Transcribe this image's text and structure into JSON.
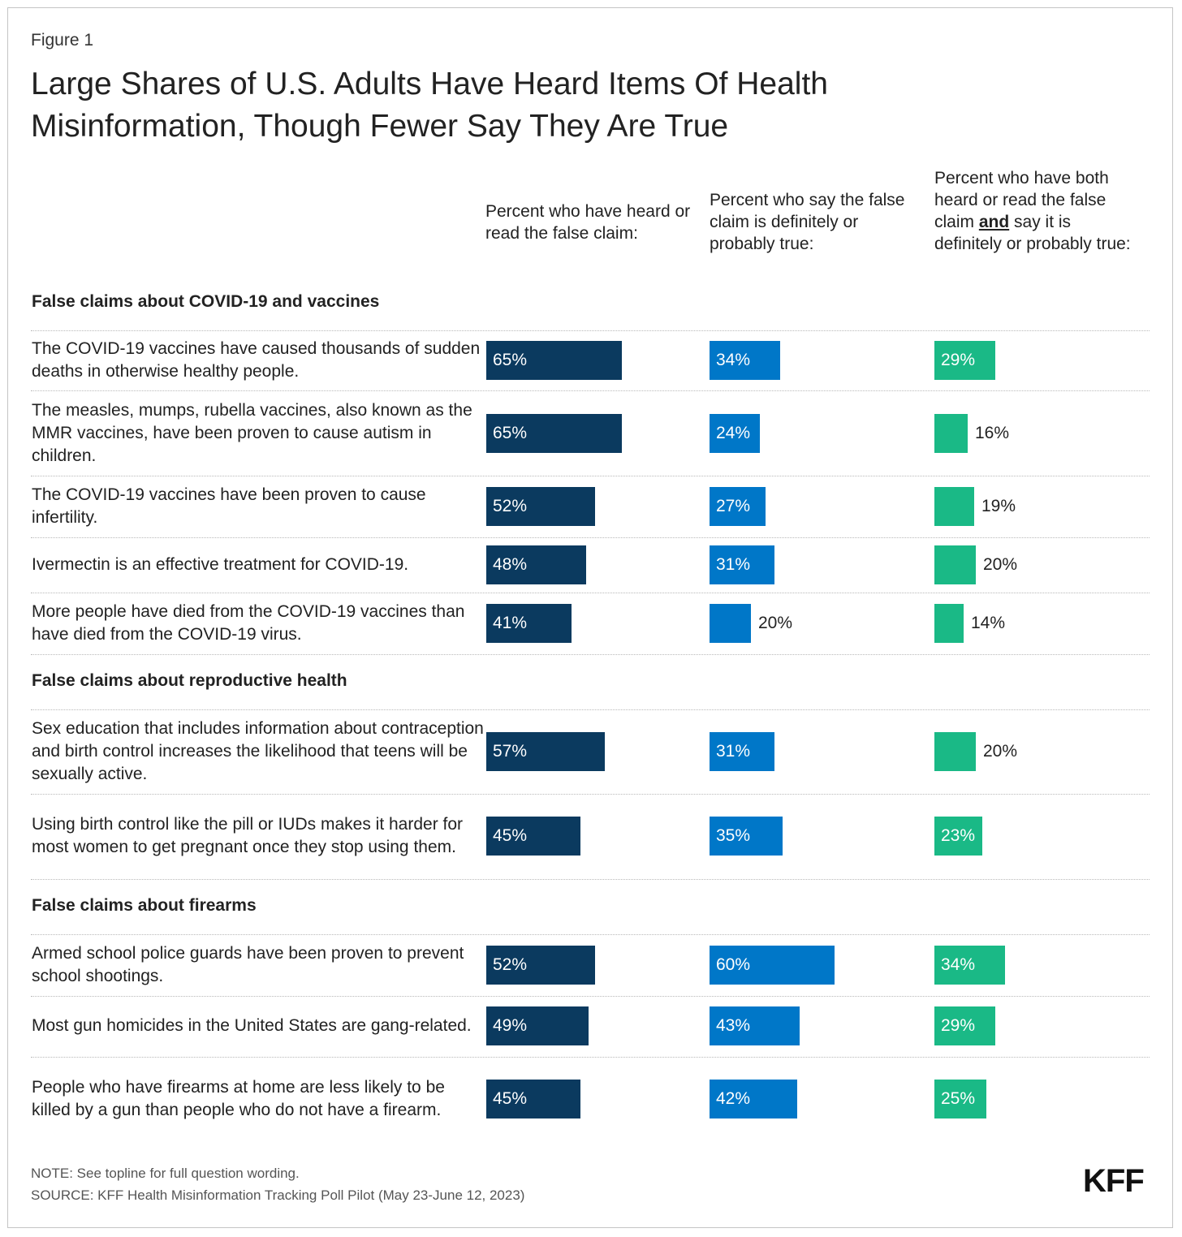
{
  "figure_label": "Figure 1",
  "title": "Large Shares of U.S. Adults Have Heard Items Of Health Misinformation, Though Fewer Say They Are True",
  "colors": {
    "heard": "#0b3a5f",
    "true": "#0077c8",
    "both": "#1ab986"
  },
  "chart_data": {
    "type": "bar",
    "title": "Large Shares of U.S. Adults Have Heard Items Of Health Misinformation, Though Fewer Say They Are True",
    "unit": "%",
    "columns": [
      {
        "key": "heard",
        "header": "Percent who have heard or read the false claim:"
      },
      {
        "key": "true",
        "header": "Percent who say the false claim is definitely or probably true:"
      },
      {
        "key": "both",
        "header_pre": "Percent who have both heard or read the false claim ",
        "header_emph": "and",
        "header_post": " say it is definitely or probably true:"
      }
    ],
    "sections": [
      {
        "title": "False claims about COVID-19 and vaccines",
        "rows": [
          {
            "label": "The COVID-19 vaccines have caused thousands of sudden deaths in otherwise healthy people.",
            "heard": 65,
            "true": 34,
            "both": 29
          },
          {
            "label": "The measles, mumps, rubella vaccines, also known as the MMR vaccines, have been proven to cause autism in children.",
            "heard": 65,
            "true": 24,
            "both": 16
          },
          {
            "label": "The COVID-19 vaccines have been proven to cause infertility.",
            "heard": 52,
            "true": 27,
            "both": 19
          },
          {
            "label": "Ivermectin is an effective treatment for COVID-19.",
            "heard": 48,
            "true": 31,
            "both": 20
          },
          {
            "label": "More people have died from the COVID-19 vaccines than have died from the COVID-19 virus.",
            "heard": 41,
            "true": 20,
            "both": 14
          }
        ]
      },
      {
        "title": "False claims about reproductive health",
        "rows": [
          {
            "label": "Sex education that includes information about contraception and birth control increases the likelihood that teens will be sexually active.",
            "heard": 57,
            "true": 31,
            "both": 20
          },
          {
            "label": "Using birth control like the pill or IUDs makes it harder for most women to get pregnant once they stop using them.",
            "heard": 45,
            "true": 35,
            "both": 23
          }
        ]
      },
      {
        "title": "False claims about firearms",
        "rows": [
          {
            "label": "Armed school police guards have been proven to prevent school shootings.",
            "heard": 52,
            "true": 60,
            "both": 34
          },
          {
            "label": "Most gun homicides in the United States are gang-related.",
            "heard": 49,
            "true": 43,
            "both": 29
          },
          {
            "label": "People who have firearms at home are less likely to be killed by a gun than people who do not have a firearm.",
            "heard": 45,
            "true": 42,
            "both": 25
          }
        ]
      }
    ]
  },
  "note": "NOTE: See topline for full question wording.",
  "source": "SOURCE: KFF Health Misinformation Tracking Poll Pilot (May 23-June 12, 2023)",
  "logo": "KFF"
}
